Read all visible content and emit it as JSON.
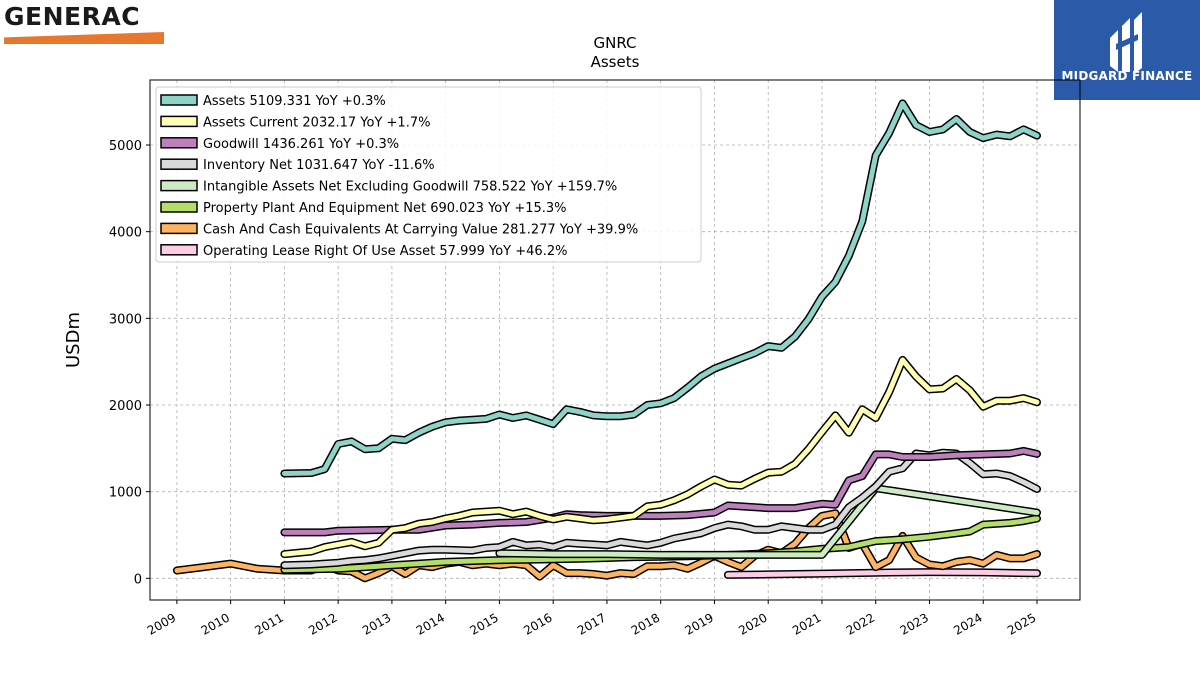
{
  "branding": {
    "left_logo": "GENERAC",
    "right_logo": "MIDGARD FINANCE",
    "right_logo_color": "#2a5aa8",
    "left_logo_accent": "#e8772e"
  },
  "chart_data": {
    "type": "line",
    "title": "GNRC",
    "subtitle": "Assets",
    "ylabel": "USDm",
    "xlabel": "",
    "xlim": [
      2008.5,
      2025.8
    ],
    "ylim": [
      -250,
      5750
    ],
    "yticks": [
      0,
      1000,
      2000,
      3000,
      4000,
      5000
    ],
    "xticks": [
      "2009",
      "2010",
      "2011",
      "2012",
      "2013",
      "2014",
      "2015",
      "2016",
      "2017",
      "2018",
      "2019",
      "2020",
      "2021",
      "2022",
      "2023",
      "2024",
      "2025"
    ],
    "grid": true,
    "legend_position": "top-left",
    "series": [
      {
        "name": "Assets",
        "legend": "Assets  5109.331 YoY +0.3%",
        "color": "#8dd3c7",
        "x": [
          2011.0,
          2011.5,
          2011.75,
          2012.0,
          2012.25,
          2012.5,
          2012.75,
          2013.0,
          2013.25,
          2013.5,
          2013.75,
          2014.0,
          2014.25,
          2014.5,
          2014.75,
          2015.0,
          2015.25,
          2015.5,
          2015.75,
          2016.0,
          2016.25,
          2016.5,
          2016.75,
          2017.0,
          2017.25,
          2017.5,
          2017.75,
          2018.0,
          2018.25,
          2018.5,
          2018.75,
          2019.0,
          2019.25,
          2019.5,
          2019.75,
          2020.0,
          2020.25,
          2020.5,
          2020.75,
          2021.0,
          2021.25,
          2021.5,
          2021.75,
          2022.0,
          2022.25,
          2022.5,
          2022.75,
          2023.0,
          2023.25,
          2023.5,
          2023.75,
          2024.0,
          2024.25,
          2024.5,
          2024.75,
          2025.0
        ],
        "y": [
          1210,
          1215,
          1260,
          1550,
          1580,
          1490,
          1500,
          1610,
          1595,
          1680,
          1750,
          1800,
          1820,
          1830,
          1840,
          1890,
          1850,
          1880,
          1830,
          1780,
          1950,
          1920,
          1880,
          1870,
          1870,
          1890,
          2000,
          2020,
          2080,
          2200,
          2330,
          2420,
          2480,
          2540,
          2600,
          2680,
          2660,
          2790,
          2990,
          3250,
          3420,
          3720,
          4120,
          4880,
          5140,
          5480,
          5230,
          5150,
          5180,
          5300,
          5150,
          5080,
          5120,
          5100,
          5180,
          5109
        ]
      },
      {
        "name": "Assets Current",
        "legend": "Assets Current  2032.17 YoY +1.7%",
        "color": "#ffffb3",
        "x": [
          2011.0,
          2011.5,
          2011.75,
          2012.0,
          2012.25,
          2012.5,
          2012.75,
          2013.0,
          2013.25,
          2013.5,
          2013.75,
          2014.0,
          2014.25,
          2014.5,
          2014.75,
          2015.0,
          2015.25,
          2015.5,
          2015.75,
          2016.0,
          2016.25,
          2016.5,
          2016.75,
          2017.0,
          2017.25,
          2017.5,
          2017.75,
          2018.0,
          2018.25,
          2018.5,
          2018.75,
          2019.0,
          2019.25,
          2019.5,
          2019.75,
          2020.0,
          2020.25,
          2020.5,
          2020.75,
          2021.0,
          2021.25,
          2021.5,
          2021.75,
          2022.0,
          2022.25,
          2022.5,
          2022.75,
          2023.0,
          2023.25,
          2023.5,
          2023.75,
          2024.0,
          2024.25,
          2024.5,
          2024.75,
          2025.0
        ],
        "y": [
          280,
          310,
          360,
          390,
          420,
          370,
          410,
          560,
          580,
          630,
          650,
          690,
          720,
          760,
          770,
          780,
          740,
          770,
          720,
          680,
          710,
          690,
          670,
          680,
          700,
          720,
          830,
          850,
          900,
          970,
          1060,
          1140,
          1080,
          1070,
          1150,
          1220,
          1230,
          1320,
          1490,
          1690,
          1880,
          1680,
          1950,
          1850,
          2150,
          2520,
          2330,
          2180,
          2190,
          2300,
          2170,
          1980,
          2050,
          2050,
          2080,
          2032
        ]
      },
      {
        "name": "Goodwill",
        "legend": "Goodwill  1436.261 YoY +0.3%",
        "color": "#bc80bd",
        "x": [
          2011.0,
          2011.5,
          2011.75,
          2012.0,
          2012.5,
          2013.0,
          2013.5,
          2014.0,
          2014.5,
          2015.0,
          2015.5,
          2016.0,
          2016.25,
          2016.5,
          2017.0,
          2017.5,
          2018.0,
          2018.5,
          2019.0,
          2019.25,
          2019.5,
          2020.0,
          2020.5,
          2021.0,
          2021.25,
          2021.5,
          2021.75,
          2022.0,
          2022.25,
          2022.5,
          2023.0,
          2023.5,
          2024.0,
          2024.5,
          2024.75,
          2025.0
        ],
        "y": [
          530,
          530,
          530,
          550,
          555,
          560,
          560,
          610,
          620,
          640,
          650,
          700,
          740,
          730,
          720,
          720,
          720,
          730,
          760,
          840,
          830,
          810,
          810,
          860,
          850,
          1130,
          1180,
          1430,
          1430,
          1400,
          1400,
          1420,
          1430,
          1440,
          1470,
          1436
        ]
      },
      {
        "name": "Inventory Net",
        "legend": "Inventory Net  1031.647 YoY -11.6%",
        "color": "#d9d9d9",
        "x": [
          2011.0,
          2011.5,
          2011.75,
          2012.0,
          2012.25,
          2012.5,
          2012.75,
          2013.0,
          2013.25,
          2013.5,
          2013.75,
          2014.0,
          2014.5,
          2014.75,
          2015.0,
          2015.25,
          2015.5,
          2015.75,
          2016.0,
          2016.25,
          2016.5,
          2016.75,
          2017.0,
          2017.25,
          2017.5,
          2017.75,
          2018.0,
          2018.25,
          2018.5,
          2018.75,
          2019.0,
          2019.25,
          2019.5,
          2019.75,
          2020.0,
          2020.25,
          2020.5,
          2020.75,
          2021.0,
          2021.25,
          2021.5,
          2021.75,
          2022.0,
          2022.25,
          2022.5,
          2022.75,
          2023.0,
          2023.25,
          2023.5,
          2023.75,
          2024.0,
          2024.25,
          2024.5,
          2024.75,
          2025.0
        ],
        "y": [
          150,
          160,
          170,
          180,
          200,
          210,
          230,
          260,
          290,
          320,
          330,
          330,
          320,
          350,
          360,
          420,
          380,
          390,
          360,
          410,
          400,
          390,
          380,
          420,
          400,
          380,
          410,
          460,
          490,
          520,
          580,
          620,
          600,
          560,
          560,
          600,
          580,
          560,
          560,
          620,
          820,
          930,
          1060,
          1230,
          1270,
          1440,
          1420,
          1450,
          1440,
          1330,
          1200,
          1210,
          1180,
          1110,
          1031
        ]
      },
      {
        "name": "Intangible Assets Net Excluding Goodwill",
        "legend": "Intangible Assets Net Excluding Goodwill  758.522 YoY +159.7%",
        "color": "#ccebc5",
        "x": [
          2015.0,
          2016.0,
          2017.0,
          2018.0,
          2019.0,
          2020.0,
          2021.0,
          2022.0,
          2025.0
        ],
        "y": [
          290,
          280,
          280,
          270,
          270,
          270,
          270,
          1040,
          758
        ]
      },
      {
        "name": "Property Plant And Equipment Net",
        "legend": "Property Plant And Equipment Net  690.023 YoY +15.3%",
        "color": "#b3de69",
        "x": [
          2011.0,
          2012.0,
          2012.5,
          2013.0,
          2013.5,
          2014.0,
          2014.5,
          2015.0,
          2015.5,
          2016.0,
          2016.5,
          2017.0,
          2017.5,
          2018.0,
          2018.5,
          2019.0,
          2019.5,
          2020.0,
          2020.5,
          2021.0,
          2021.5,
          2022.0,
          2022.5,
          2023.0,
          2023.5,
          2023.75,
          2024.0,
          2024.5,
          2024.75,
          2025.0
        ],
        "y": [
          100,
          110,
          130,
          150,
          170,
          190,
          200,
          210,
          215,
          220,
          225,
          235,
          245,
          250,
          255,
          265,
          275,
          290,
          310,
          340,
          360,
          430,
          450,
          480,
          520,
          540,
          620,
          640,
          660,
          690
        ]
      },
      {
        "name": "Cash And Cash Equivalents At Carrying Value",
        "legend": "Cash And Cash Equivalents At Carrying Value  281.277 YoY +39.9%",
        "color": "#fdb462",
        "x": [
          2009.0,
          2009.5,
          2010.0,
          2010.5,
          2011.0,
          2011.5,
          2011.75,
          2012.0,
          2012.25,
          2012.5,
          2012.75,
          2013.0,
          2013.25,
          2013.5,
          2013.75,
          2014.0,
          2014.25,
          2014.5,
          2014.75,
          2015.0,
          2015.25,
          2015.5,
          2015.75,
          2016.0,
          2016.25,
          2016.5,
          2016.75,
          2017.0,
          2017.25,
          2017.5,
          2017.75,
          2018.0,
          2018.25,
          2018.5,
          2018.75,
          2019.0,
          2019.25,
          2019.5,
          2019.75,
          2020.0,
          2020.25,
          2020.5,
          2020.75,
          2021.0,
          2021.25,
          2021.5,
          2021.75,
          2022.0,
          2022.25,
          2022.5,
          2022.75,
          2023.0,
          2023.25,
          2023.5,
          2023.75,
          2024.0,
          2024.25,
          2024.5,
          2024.75,
          2025.0
        ],
        "y": [
          90,
          130,
          170,
          110,
          90,
          90,
          150,
          90,
          80,
          0,
          60,
          140,
          50,
          150,
          130,
          170,
          190,
          150,
          170,
          150,
          170,
          150,
          20,
          150,
          60,
          60,
          50,
          30,
          60,
          50,
          140,
          140,
          150,
          110,
          180,
          260,
          190,
          130,
          260,
          330,
          290,
          400,
          580,
          720,
          750,
          350,
          400,
          130,
          210,
          490,
          240,
          160,
          140,
          190,
          210,
          170,
          270,
          230,
          230,
          281
        ]
      },
      {
        "name": "Operating Lease Right Of Use Asset",
        "legend": "Operating Lease Right Of Use Asset  57.999 YoY +46.2%",
        "color": "#fccde5",
        "x": [
          2019.25,
          2020.0,
          2021.0,
          2022.0,
          2023.0,
          2024.0,
          2025.0
        ],
        "y": [
          40,
          45,
          55,
          65,
          72,
          68,
          58
        ]
      }
    ]
  }
}
